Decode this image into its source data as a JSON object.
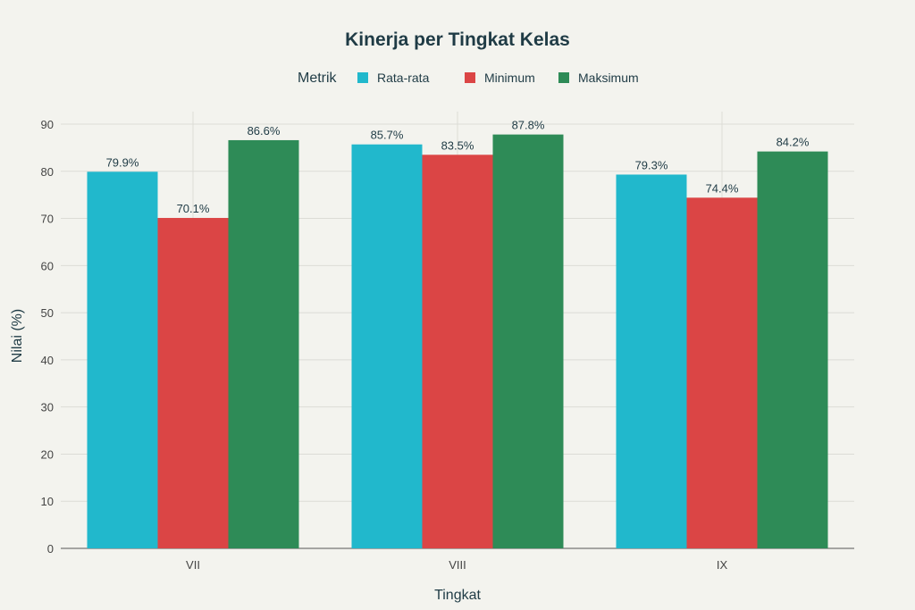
{
  "chart_data": {
    "type": "bar",
    "title": "Kinerja per Tingkat Kelas",
    "xlabel": "Tingkat",
    "ylabel": "Nilai (%)",
    "ylim": [
      0,
      90
    ],
    "yticks": [
      0,
      10,
      20,
      30,
      40,
      50,
      60,
      70,
      80,
      90
    ],
    "grid": true,
    "legend": {
      "title": "Metrik",
      "placement": "top-center"
    },
    "categories": [
      "VII",
      "VIII",
      "IX"
    ],
    "series": [
      {
        "name": "Rata-rata",
        "color": "#21b8cc",
        "values": [
          79.9,
          85.7,
          79.3
        ],
        "labels": [
          "79.9%",
          "85.7%",
          "79.3%"
        ]
      },
      {
        "name": "Minimum",
        "color": "#db4545",
        "values": [
          70.1,
          83.5,
          74.4
        ],
        "labels": [
          "70.1%",
          "83.5%",
          "74.4%"
        ]
      },
      {
        "name": "Maksimum",
        "color": "#2e8b57",
        "values": [
          86.6,
          87.8,
          84.2
        ],
        "labels": [
          "86.6%",
          "87.8%",
          "84.2%"
        ]
      }
    ]
  }
}
